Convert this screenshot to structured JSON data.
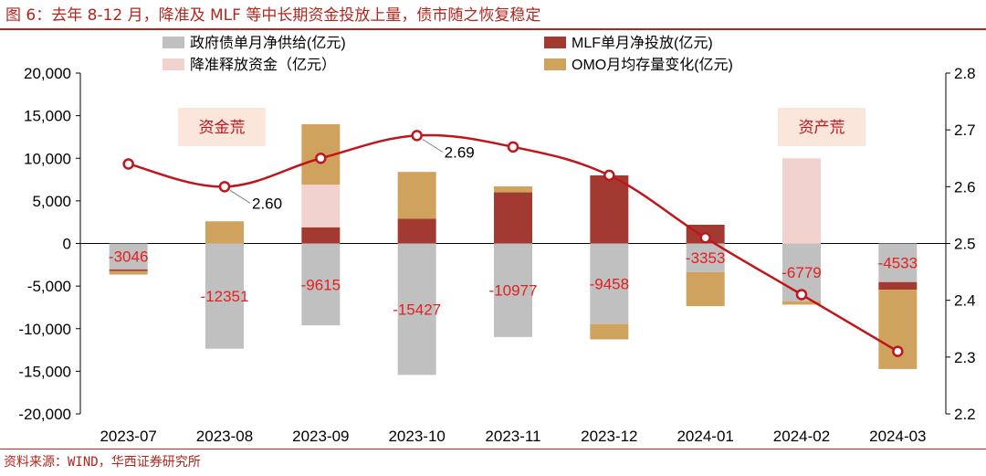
{
  "figure": {
    "title": "图 6：去年 8-12 月，降准及 MLF 等中长期资金投放上量，债市随之恢复稳定",
    "source": "资料来源：WIND，华西证券研究所"
  },
  "chart_data": {
    "type": "bar",
    "stacked": true,
    "categories": [
      "2023-07",
      "2023-08",
      "2023-09",
      "2023-10",
      "2023-11",
      "2023-12",
      "2024-01",
      "2024-02",
      "2024-03"
    ],
    "left_axis": {
      "min": -20000,
      "max": 20000,
      "step": 5000,
      "tick_labels": [
        "-20,000",
        "-15,000",
        "-10,000",
        "-5,000",
        "0",
        "5,000",
        "10,000",
        "15,000",
        "20,000"
      ]
    },
    "right_axis": {
      "min": 2.2,
      "max": 2.8,
      "step": 0.1,
      "tick_labels": [
        "2.2",
        "2.3",
        "2.4",
        "2.5",
        "2.6",
        "2.7",
        "2.8"
      ]
    },
    "series": [
      {
        "name": "政府债单月净供给(亿元)",
        "color": "#c0c0c0",
        "values": [
          -3046,
          -12351,
          -9615,
          -15427,
          -10977,
          -9458,
          -3353,
          -6779,
          -4533
        ]
      },
      {
        "name": "MLF单月净投放(亿元)",
        "color": "#a33a31",
        "values": [
          -200,
          0,
          1900,
          2900,
          6000,
          8000,
          2200,
          0,
          -900
        ]
      },
      {
        "name": "降准释放资金（亿元）",
        "color": "#f2d2cf",
        "values": [
          0,
          0,
          5000,
          0,
          0,
          0,
          0,
          10000,
          0
        ]
      },
      {
        "name": "OMO月均存量变化(亿元)",
        "color": "#cfa25e",
        "values": [
          -400,
          2600,
          7100,
          5500,
          700,
          -1800,
          -4000,
          -400,
          -9300
        ]
      }
    ],
    "line": {
      "name": "",
      "color": "#c0161b",
      "axis": "right",
      "values": [
        2.64,
        2.6,
        2.65,
        2.69,
        2.67,
        2.62,
        2.51,
        2.41,
        2.31
      ]
    },
    "data_labels": [
      "-3046",
      "-12351",
      "-9615",
      "-15427",
      "-10977",
      "-9458",
      "-3353",
      "-6779",
      "-4533"
    ],
    "line_labels": [
      {
        "index": 1,
        "text": "2.60"
      },
      {
        "index": 3,
        "text": "2.69"
      }
    ],
    "annotations": [
      {
        "text": "资金荒",
        "near": "2023-07"
      },
      {
        "text": "资产荒",
        "near": "2024-03"
      }
    ],
    "legend_position": "top"
  }
}
